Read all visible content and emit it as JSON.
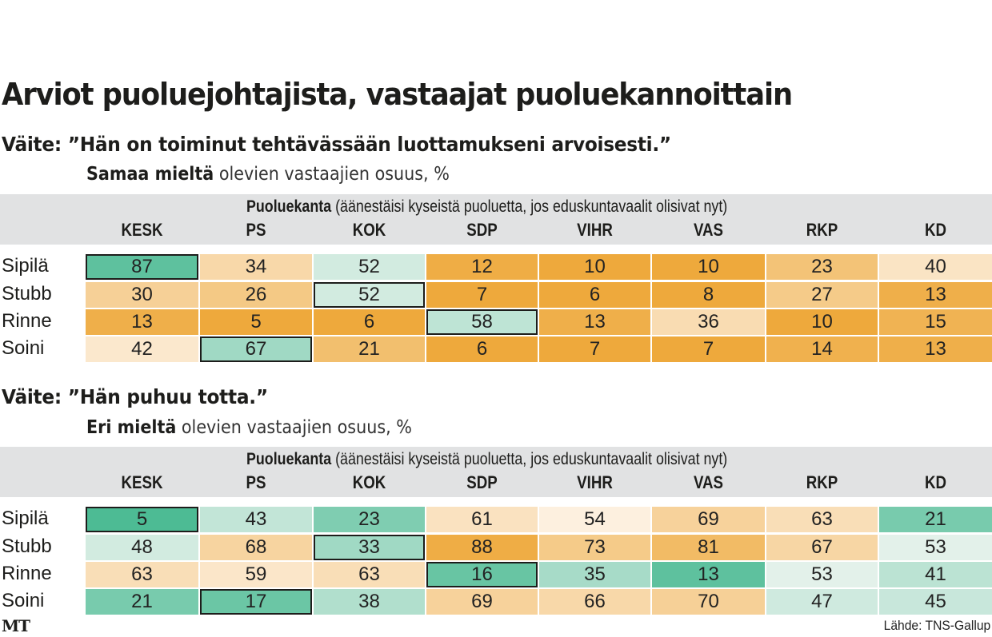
{
  "title": "Arviot puoluejohtajista, vastaajat puoluekannoittain",
  "footer": {
    "logo": "MT",
    "source": "Lähde: TNS-Gallup"
  },
  "colors": {
    "header_band": "#e1e2e3",
    "highlight_border": "#1d1d1b",
    "green_strong": "#4dbb94",
    "orange_strong": "#eea93c",
    "neutral": "#fdf2e4"
  },
  "chart_data": [
    {
      "type": "heatmap",
      "title": "Väite: ”Hän on toiminut tehtävässään luottamukseni arvoisesti.”",
      "subtitle_bold": "Samaa mieltä",
      "subtitle_rest": " olevien vastaajien osuus, %",
      "header_caption_bold": "Puoluekanta",
      "header_caption_rest": " (äänestäisi kyseistä puoluetta, jos eduskuntavaalit olisivat nyt)",
      "columns": [
        "KESK",
        "PS",
        "KOK",
        "SDP",
        "VIHR",
        "VAS",
        "RKP",
        "KD"
      ],
      "rows": [
        "Sipilä",
        "Stubb",
        "Rinne",
        "Soini"
      ],
      "values": [
        [
          87,
          34,
          52,
          12,
          10,
          10,
          23,
          40
        ],
        [
          30,
          26,
          52,
          7,
          6,
          8,
          27,
          13
        ],
        [
          13,
          5,
          6,
          58,
          13,
          36,
          10,
          15
        ],
        [
          42,
          67,
          21,
          6,
          7,
          7,
          14,
          13
        ]
      ],
      "highlighted": [
        [
          0,
          0
        ],
        [
          1,
          2
        ],
        [
          2,
          3
        ],
        [
          3,
          1
        ]
      ],
      "higher_is_good": true,
      "unit": "%"
    },
    {
      "type": "heatmap",
      "title": "Väite: ”Hän puhuu totta.”",
      "subtitle_bold": "Eri mieltä",
      "subtitle_rest": " olevien vastaajien osuus, %",
      "header_caption_bold": "Puoluekanta",
      "header_caption_rest": " (äänestäisi kyseistä puoluetta, jos eduskuntavaalit olisivat nyt)",
      "columns": [
        "KESK",
        "PS",
        "KOK",
        "SDP",
        "VIHR",
        "VAS",
        "RKP",
        "KD"
      ],
      "rows": [
        "Sipilä",
        "Stubb",
        "Rinne",
        "Soini"
      ],
      "values": [
        [
          5,
          43,
          23,
          61,
          54,
          69,
          63,
          21
        ],
        [
          48,
          68,
          33,
          88,
          73,
          81,
          67,
          53
        ],
        [
          63,
          59,
          63,
          16,
          35,
          13,
          53,
          41
        ],
        [
          21,
          17,
          38,
          69,
          66,
          70,
          47,
          45
        ]
      ],
      "highlighted": [
        [
          0,
          0
        ],
        [
          1,
          2
        ],
        [
          2,
          3
        ],
        [
          3,
          1
        ]
      ],
      "higher_is_good": false,
      "unit": "%"
    }
  ]
}
